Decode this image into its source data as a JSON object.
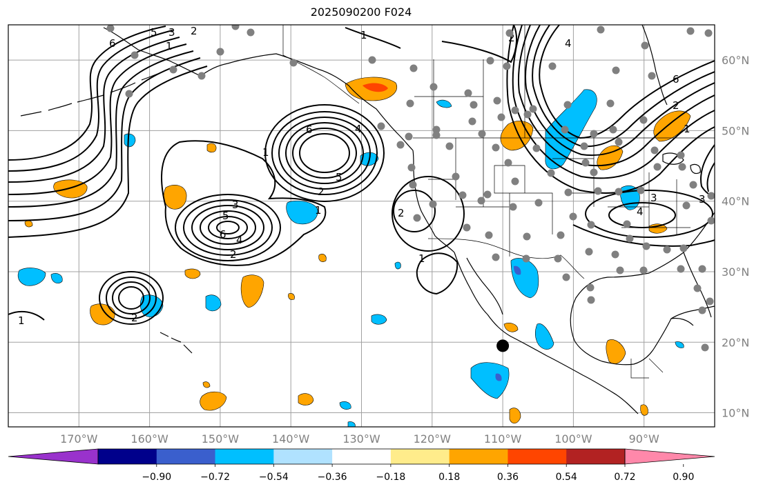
{
  "title": "2025090200 F024",
  "map": {
    "projection": "PlateCarree",
    "lon_range": [
      -180,
      -80
    ],
    "lat_range": [
      8,
      65
    ],
    "grid": true,
    "lat_ticks": [
      {
        "value": 10,
        "label": "10°N"
      },
      {
        "value": 20,
        "label": "20°N"
      },
      {
        "value": 30,
        "label": "30°N"
      },
      {
        "value": 40,
        "label": "40°N"
      },
      {
        "value": 50,
        "label": "50°N"
      },
      {
        "value": 60,
        "label": "60°N"
      }
    ],
    "lon_ticks": [
      {
        "value": -170,
        "label": "170°W"
      },
      {
        "value": -160,
        "label": "160°W"
      },
      {
        "value": -150,
        "label": "150°W"
      },
      {
        "value": -140,
        "label": "140°W"
      },
      {
        "value": -130,
        "label": "130°W"
      },
      {
        "value": -120,
        "label": "120°W"
      },
      {
        "value": -110,
        "label": "110°W"
      },
      {
        "value": -100,
        "label": "100°W"
      },
      {
        "value": -90,
        "label": "90°W"
      }
    ],
    "marker": {
      "lon": -110,
      "lat": 19.5,
      "color": "#000000"
    },
    "station_color": "#808080",
    "contour_color": "#000000",
    "contour_labels": [
      "1",
      "2",
      "3",
      "4",
      "5",
      "6"
    ]
  },
  "colorbar": {
    "colors": [
      "#9932cc",
      "#00008b",
      "#3a5fcd",
      "#00bfff",
      "#b0e2ff",
      "#ffffff",
      "#ffec8b",
      "#ffa500",
      "#ff4500",
      "#b22222",
      "#ff88aa"
    ],
    "tick_labels": [
      "−0.90",
      "−0.72",
      "−0.54",
      "−0.36",
      "−0.18",
      "0.18",
      "0.36",
      "0.54",
      "0.72",
      "0.90"
    ]
  }
}
